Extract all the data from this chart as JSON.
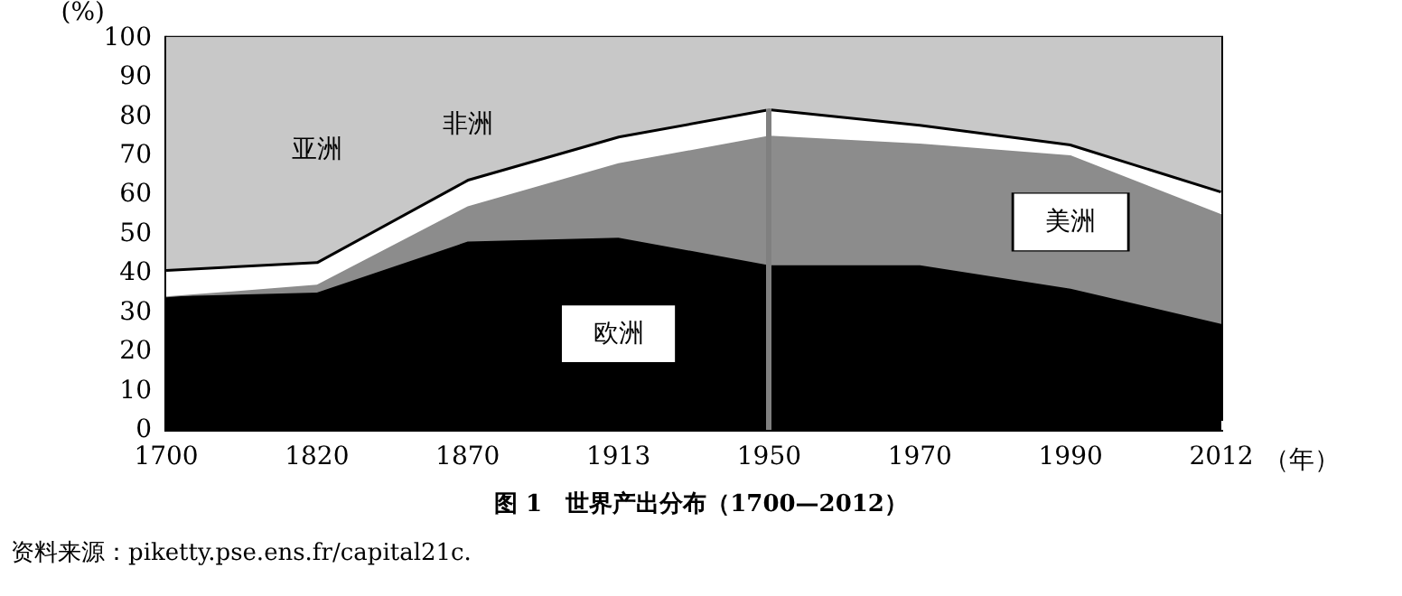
{
  "chart_data": {
    "type": "area",
    "stacked": true,
    "title": "图 1　世界产出分布（1700—2012）",
    "ylabel": "(%)",
    "xlabel": "（年）",
    "annotations": [
      "资料来源：piketty.pse.ens.fr/capital21c."
    ],
    "categories": [
      "1700",
      "1820",
      "1870",
      "1913",
      "1950",
      "1970",
      "1990",
      "2012"
    ],
    "series": [
      {
        "name": "欧洲",
        "color": "#000000",
        "values": [
          34,
          35,
          48,
          49,
          42,
          42,
          36,
          27
        ]
      },
      {
        "name": "美洲",
        "color": "#8c8c8c",
        "values": [
          0,
          2,
          9,
          19,
          33,
          31,
          34,
          28
        ]
      },
      {
        "name": "非洲",
        "color": "#ffffff",
        "values": [
          7,
          6,
          7,
          7,
          7,
          5,
          3,
          6
        ]
      },
      {
        "name": "亚洲",
        "color": "#c8c8c8",
        "values": [
          59,
          57,
          36,
          25,
          18,
          22,
          27,
          39
        ]
      }
    ],
    "ylim": [
      0,
      100
    ],
    "yticks": [
      0,
      10,
      20,
      30,
      40,
      50,
      60,
      70,
      80,
      90,
      100
    ],
    "ref_lines": [
      {
        "axis": "x",
        "value": "1950",
        "color": "#808080"
      }
    ],
    "grid": false,
    "legend": false
  }
}
